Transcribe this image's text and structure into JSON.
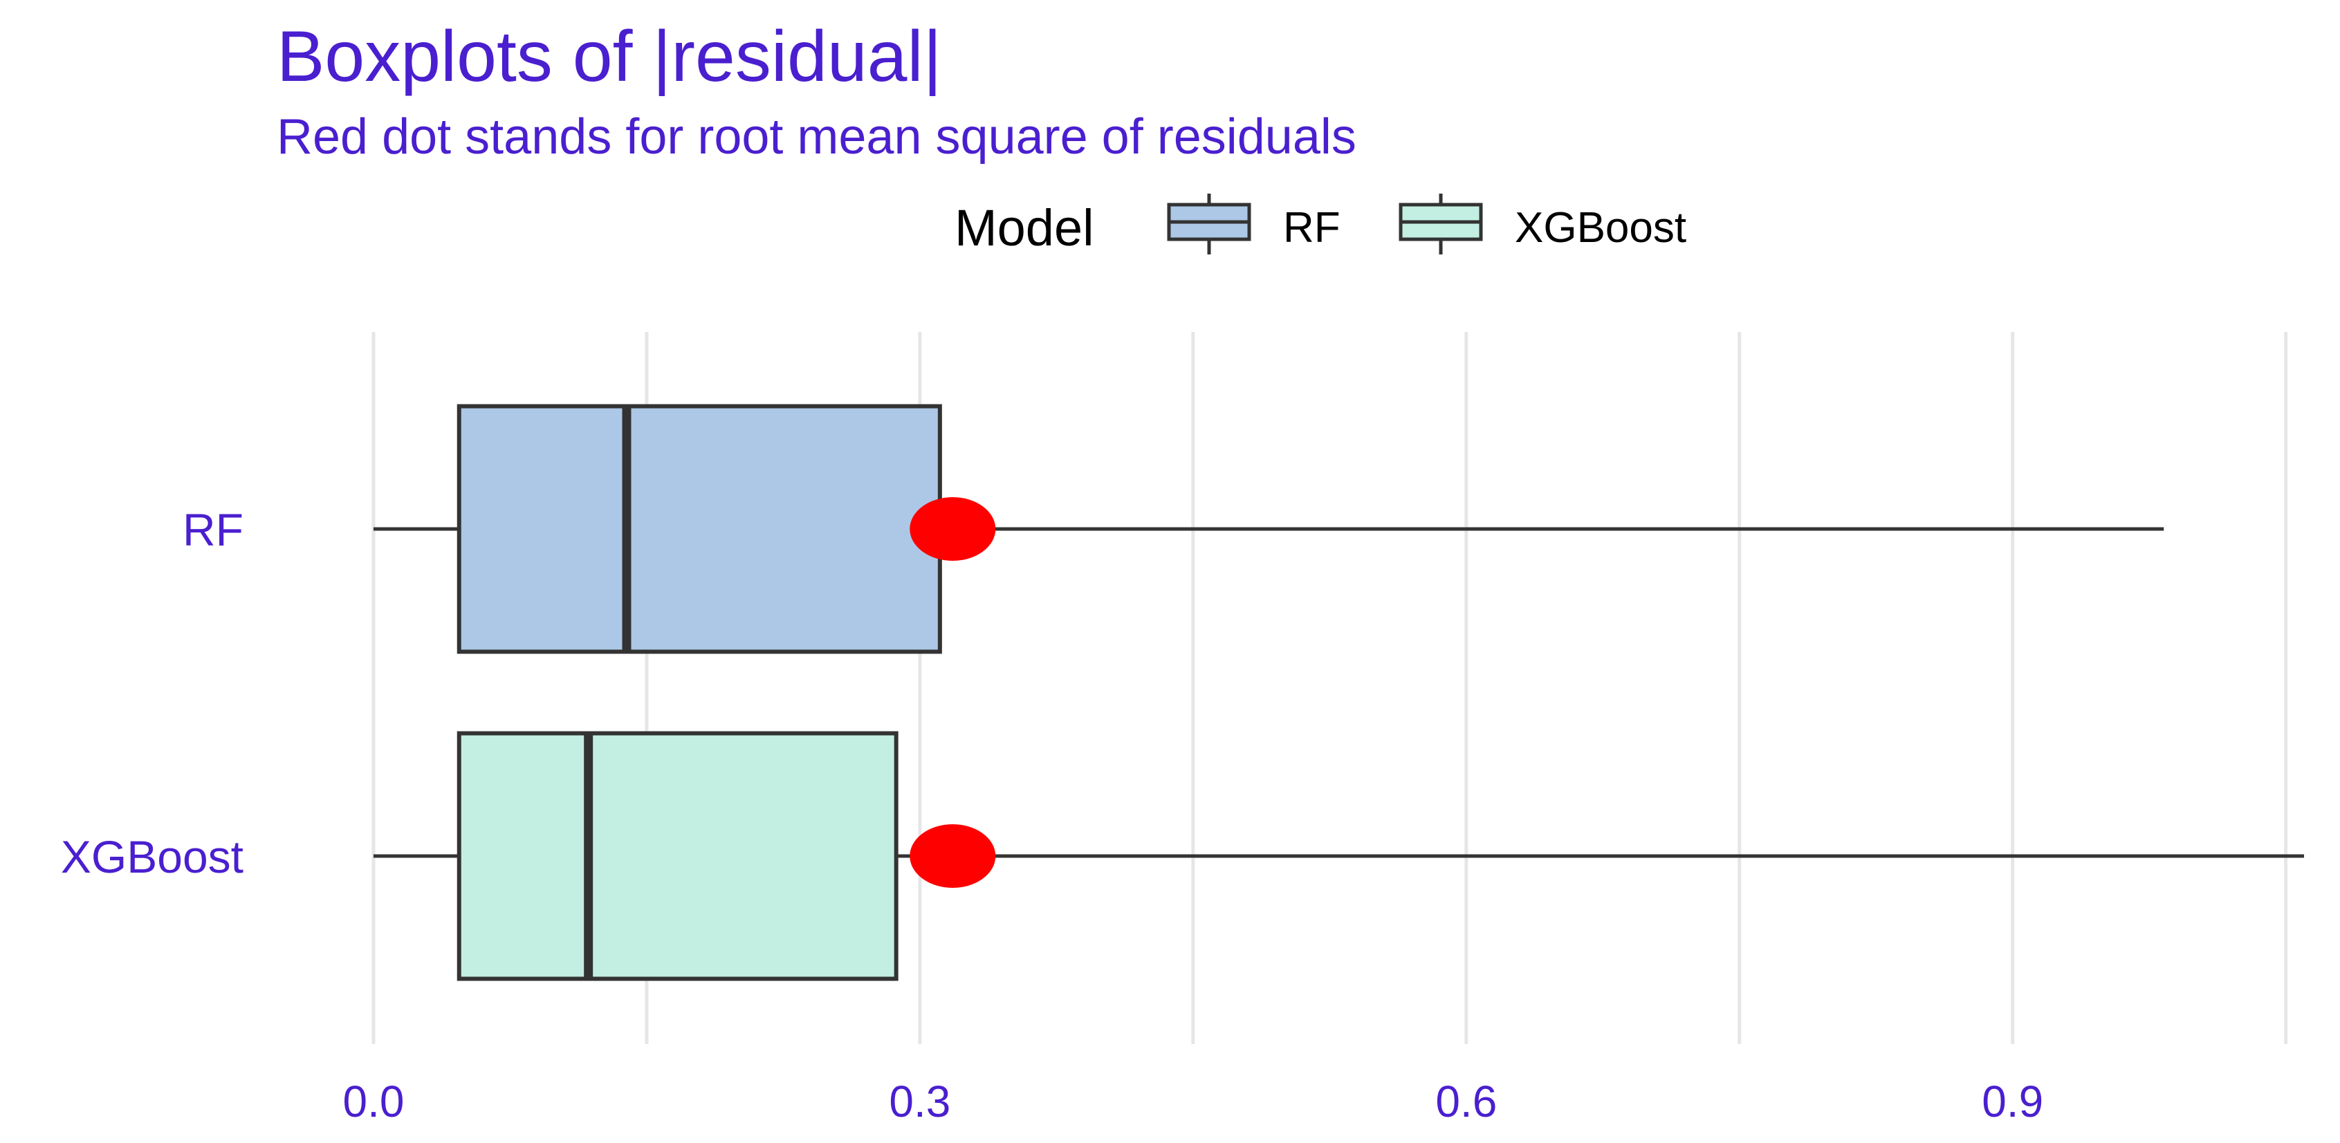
{
  "chart_data": {
    "type": "boxplot",
    "title": "Boxplots of |residual|",
    "subtitle": "Red dot stands for root mean square of residuals",
    "legend": {
      "title": "Model",
      "position": "top",
      "entries": [
        {
          "name": "RF",
          "color": "#adc8e6"
        },
        {
          "name": "XGBoost",
          "color": "#c3efe2"
        }
      ]
    },
    "xlabel": "",
    "ylabel": "",
    "xlim": [
      -0.01,
      1.06
    ],
    "x_ticks": [
      0.0,
      0.3,
      0.6,
      0.9
    ],
    "x_tick_labels": [
      "0.0",
      "0.3",
      "0.6",
      "0.9"
    ],
    "grid": true,
    "categories": [
      "RF",
      "XGBoost"
    ],
    "series": [
      {
        "name": "RF",
        "whisker_low": 0.0,
        "q1": 0.047,
        "median": 0.139,
        "q3": 0.311,
        "whisker_high": 0.983,
        "rms": 0.318,
        "color": "#adc8e6"
      },
      {
        "name": "XGBoost",
        "whisker_low": 0.0,
        "q1": 0.047,
        "median": 0.118,
        "q3": 0.287,
        "whisker_high": 1.06,
        "rms": 0.318,
        "color": "#c3efe2"
      }
    ],
    "rms_color": "#ff0000"
  }
}
